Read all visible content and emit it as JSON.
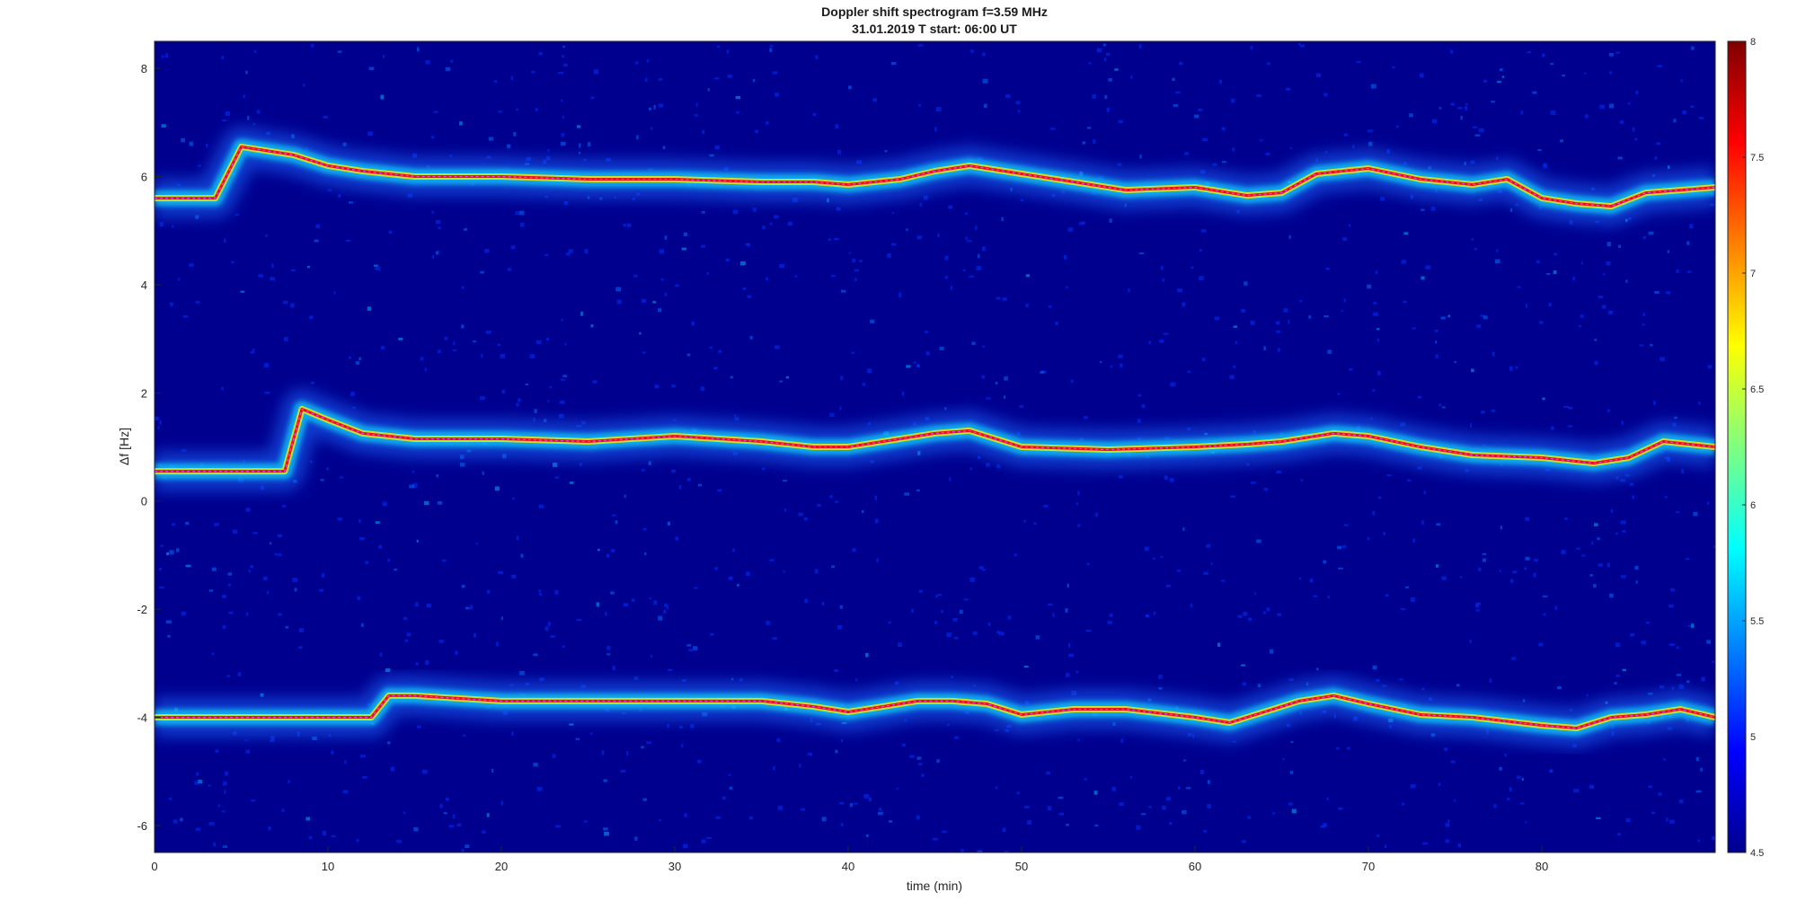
{
  "chart_data": {
    "type": "heatmap",
    "title": "Doppler shift spectrogram f=3.59 MHz",
    "subtitle": "31.01.2019   T start: 06:00 UT",
    "xlabel": "time (min)",
    "ylabel": "Δf [Hz]",
    "xlim": [
      0,
      90
    ],
    "ylim": [
      -6.5,
      8.5
    ],
    "xticks": [
      0,
      10,
      20,
      30,
      40,
      50,
      60,
      70,
      80
    ],
    "yticks": [
      -6,
      -4,
      -2,
      0,
      2,
      4,
      6,
      8
    ],
    "colormap": "jet",
    "colorbar": {
      "range": [
        4.5,
        8
      ],
      "ticks": [
        4.5,
        5,
        5.5,
        6,
        6.5,
        7,
        7.5,
        8
      ]
    },
    "grid": false,
    "background_color": "#00008f",
    "traces": [
      {
        "x": [
          0,
          3.5,
          5,
          8,
          10,
          12,
          15,
          20,
          25,
          30,
          35,
          38,
          40,
          43,
          45,
          47,
          50,
          53,
          56,
          60,
          63,
          65,
          67,
          70,
          73,
          76,
          78,
          80,
          82,
          84,
          86,
          88,
          90
        ],
        "y": [
          5.6,
          5.6,
          6.55,
          6.4,
          6.2,
          6.1,
          6.0,
          6.0,
          5.95,
          5.95,
          5.9,
          5.9,
          5.85,
          5.95,
          6.1,
          6.2,
          6.05,
          5.9,
          5.75,
          5.8,
          5.65,
          5.7,
          6.05,
          6.15,
          5.95,
          5.85,
          5.95,
          5.6,
          5.5,
          5.45,
          5.7,
          5.75,
          5.8
        ]
      },
      {
        "x": [
          0,
          7.5,
          8.5,
          10,
          12,
          15,
          20,
          25,
          30,
          35,
          38,
          40,
          43,
          45,
          47,
          50,
          55,
          60,
          63,
          65,
          68,
          70,
          73,
          76,
          80,
          83,
          85,
          87,
          90
        ],
        "y": [
          0.55,
          0.55,
          1.7,
          1.5,
          1.25,
          1.15,
          1.15,
          1.1,
          1.2,
          1.1,
          1.0,
          1.0,
          1.15,
          1.25,
          1.3,
          1.0,
          0.95,
          1.0,
          1.05,
          1.1,
          1.25,
          1.2,
          1.0,
          0.85,
          0.8,
          0.7,
          0.8,
          1.1,
          1.0
        ]
      },
      {
        "x": [
          0,
          10,
          12.5,
          13.5,
          15,
          20,
          25,
          30,
          35,
          38,
          40,
          42,
          44,
          46,
          48,
          50,
          53,
          56,
          60,
          62,
          64,
          66,
          68,
          70,
          73,
          76,
          80,
          82,
          84,
          86,
          88,
          90
        ],
        "y": [
          -4.0,
          -4.0,
          -4.0,
          -3.6,
          -3.6,
          -3.7,
          -3.7,
          -3.7,
          -3.7,
          -3.8,
          -3.9,
          -3.8,
          -3.7,
          -3.7,
          -3.75,
          -3.95,
          -3.85,
          -3.85,
          -4.0,
          -4.1,
          -3.9,
          -3.7,
          -3.6,
          -3.75,
          -3.95,
          -4.0,
          -4.15,
          -4.2,
          -4.0,
          -3.95,
          -3.85,
          -4.0
        ]
      }
    ]
  }
}
